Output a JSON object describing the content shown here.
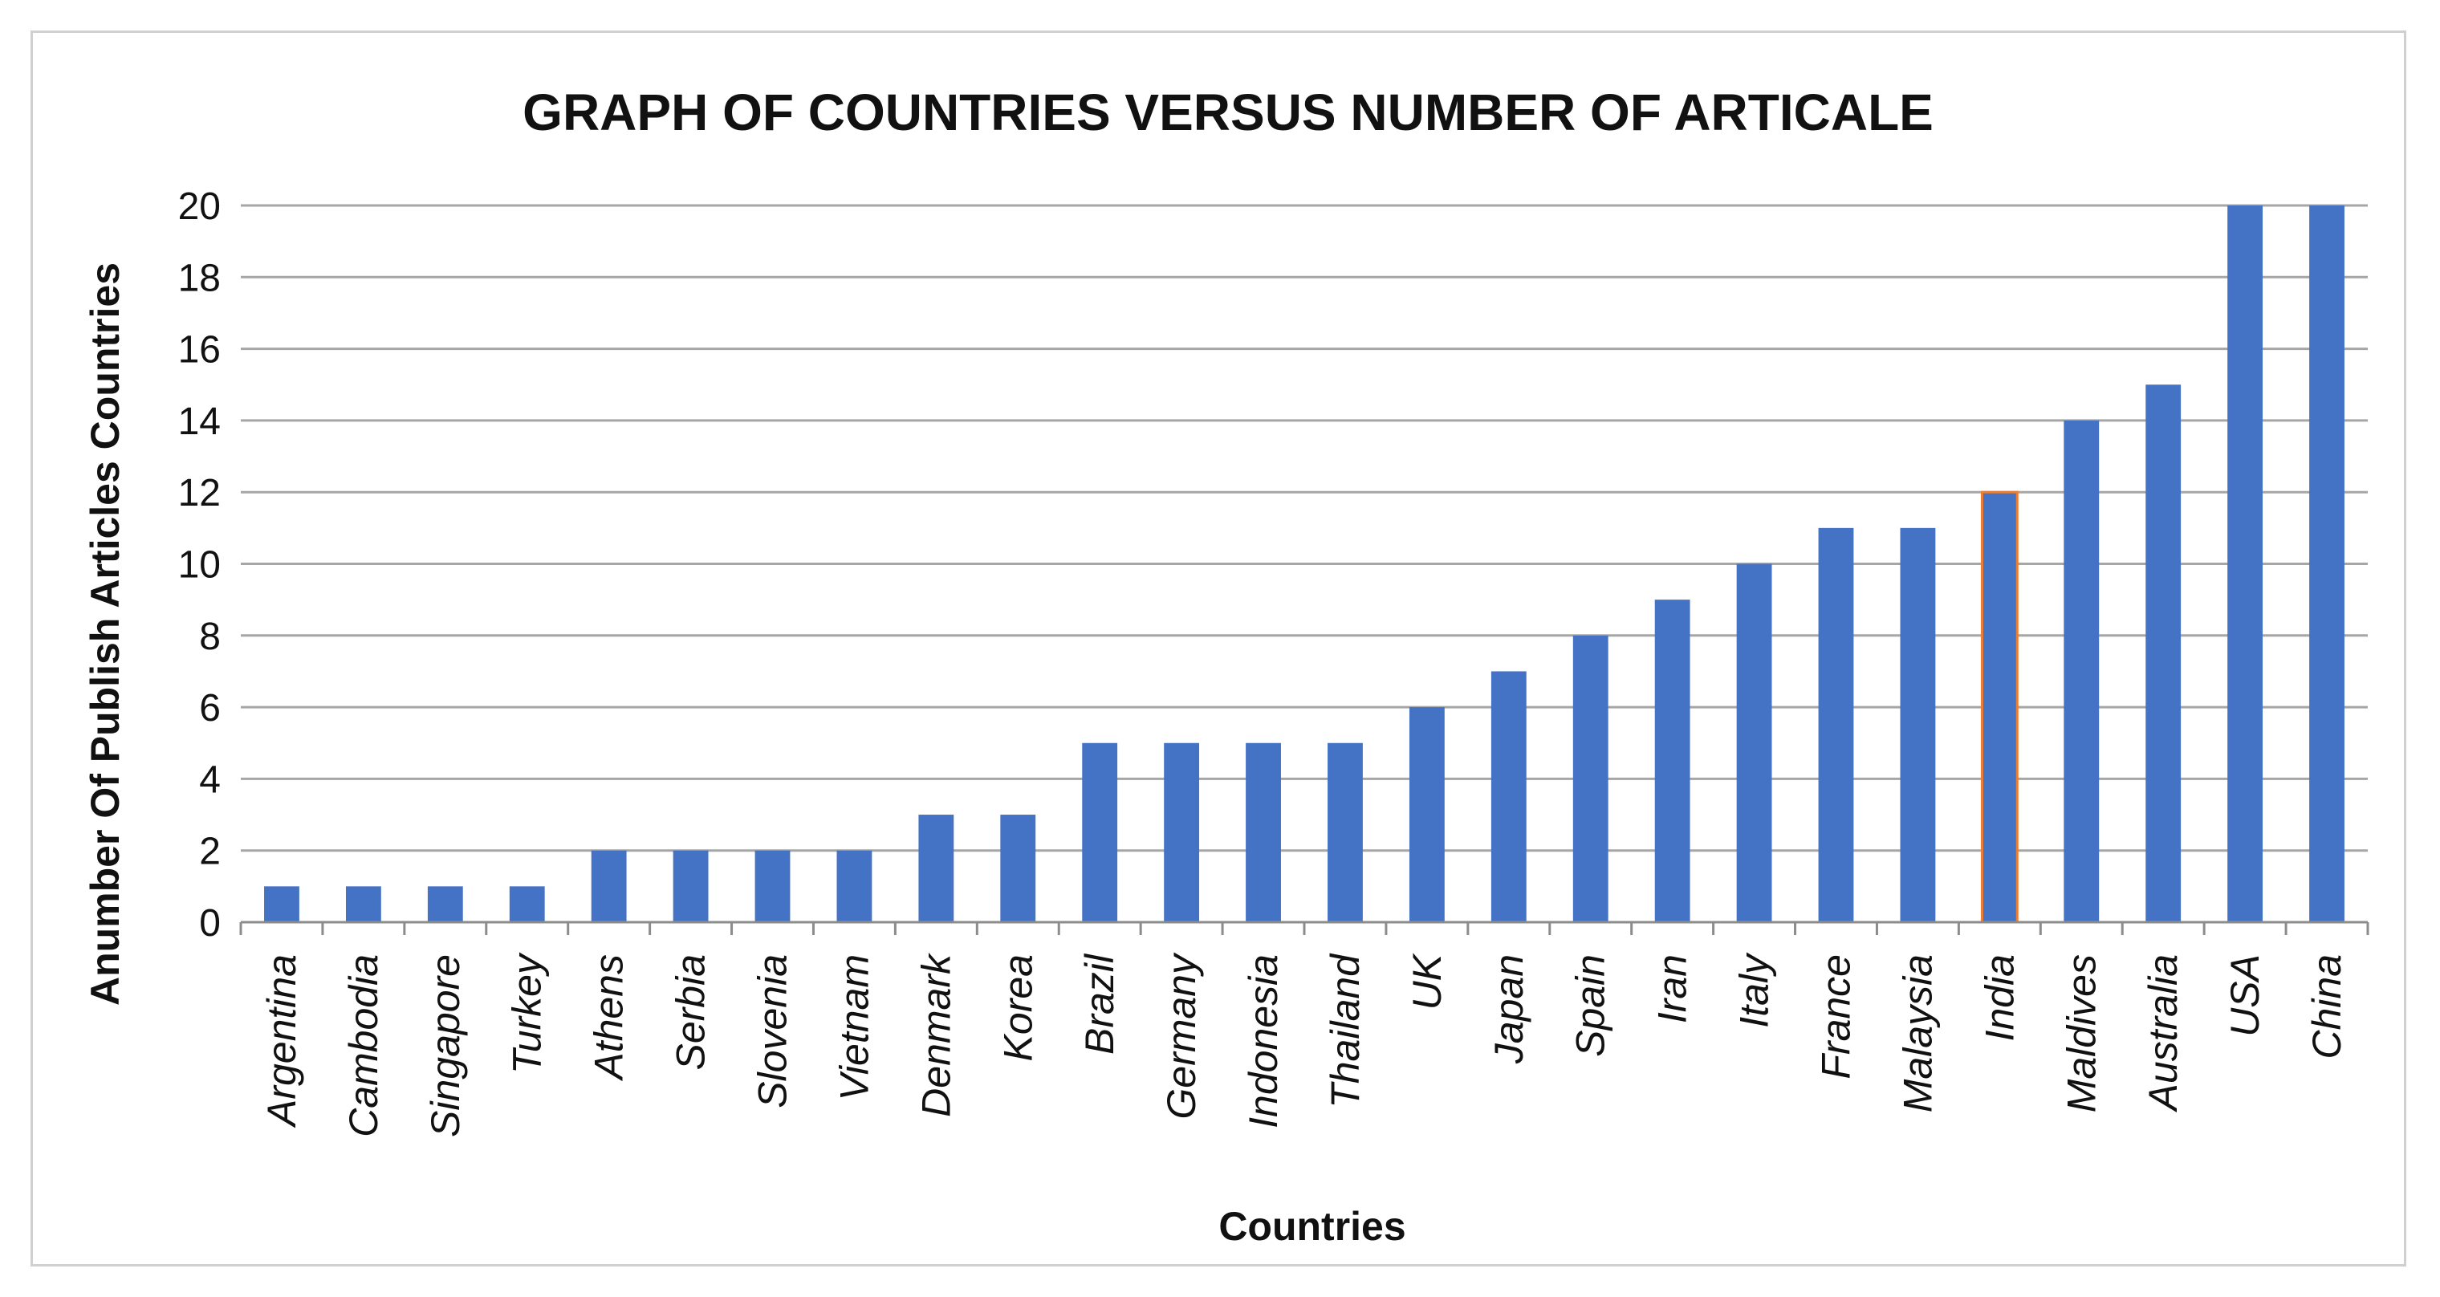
{
  "chart_data": {
    "type": "bar",
    "title": "GRAPH OF COUNTRIES VERSUS NUMBER OF ARTICALE",
    "xlabel": "Countries",
    "ylabel": "Anumber  Of Publish Articles Countries",
    "ylim": [
      0,
      20
    ],
    "yticks": [
      0,
      2,
      4,
      6,
      8,
      10,
      12,
      14,
      16,
      18,
      20
    ],
    "grid": true,
    "legend": "none",
    "categories": [
      "Argentina",
      "Cambodia",
      "Singapore",
      "Turkey",
      "Athens",
      "Serbia",
      "Slovenia",
      "Vietnam",
      "Denmark",
      "Korea",
      "Brazil",
      "Germany",
      "Indonesia",
      "Thailand",
      "UK",
      "Japan",
      "Spain",
      "Iran",
      "Italy",
      "France",
      "Malaysia",
      "India",
      "Maldives",
      "Australia",
      "USA",
      "China"
    ],
    "values": [
      1,
      1,
      1,
      1,
      2,
      2,
      2,
      2,
      3,
      3,
      5,
      5,
      5,
      5,
      6,
      7,
      8,
      9,
      10,
      11,
      11,
      12,
      14,
      15,
      20,
      20
    ],
    "bar_color": "#4472C4",
    "highlight_outline": {
      "category": "India",
      "color": "#ED7D31"
    },
    "gridline_color": "#A6A6A6"
  }
}
